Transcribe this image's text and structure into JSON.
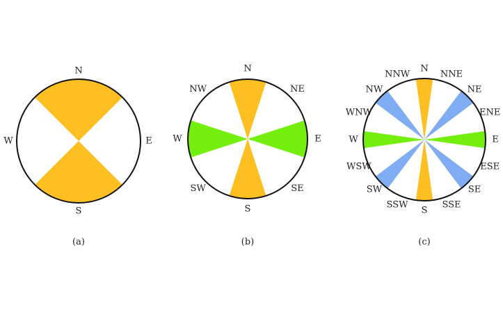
{
  "colors": {
    "orange": "#fdbf22",
    "green": "#74ef0d",
    "blue": "#7facf2",
    "outline": "#111111",
    "background": "#ffffff"
  },
  "roses": [
    {
      "id": "a",
      "caption": "(a)",
      "labels": [
        "N",
        "E",
        "S",
        "W"
      ],
      "sectors": [
        {
          "direction": "N",
          "color": "orange"
        },
        {
          "direction": "S",
          "color": "orange"
        }
      ]
    },
    {
      "id": "b",
      "caption": "(b)",
      "labels": [
        "N",
        "NE",
        "E",
        "SE",
        "S",
        "SW",
        "W",
        "NW"
      ],
      "sectors": [
        {
          "direction": "N",
          "color": "orange"
        },
        {
          "direction": "S",
          "color": "orange"
        },
        {
          "direction": "E",
          "color": "green"
        },
        {
          "direction": "W",
          "color": "green"
        }
      ]
    },
    {
      "id": "c",
      "caption": "(c)",
      "labels": [
        "N",
        "NNE",
        "NE",
        "ENE",
        "E",
        "ESE",
        "SE",
        "SSE",
        "S",
        "SSW",
        "SW",
        "WSW",
        "W",
        "WNW",
        "NW",
        "NNW"
      ],
      "sectors": [
        {
          "direction": "N",
          "color": "orange"
        },
        {
          "direction": "S",
          "color": "orange"
        },
        {
          "direction": "E",
          "color": "green"
        },
        {
          "direction": "W",
          "color": "green"
        },
        {
          "direction": "NE",
          "color": "blue"
        },
        {
          "direction": "SE",
          "color": "blue"
        },
        {
          "direction": "SW",
          "color": "blue"
        },
        {
          "direction": "NW",
          "color": "blue"
        }
      ]
    }
  ]
}
